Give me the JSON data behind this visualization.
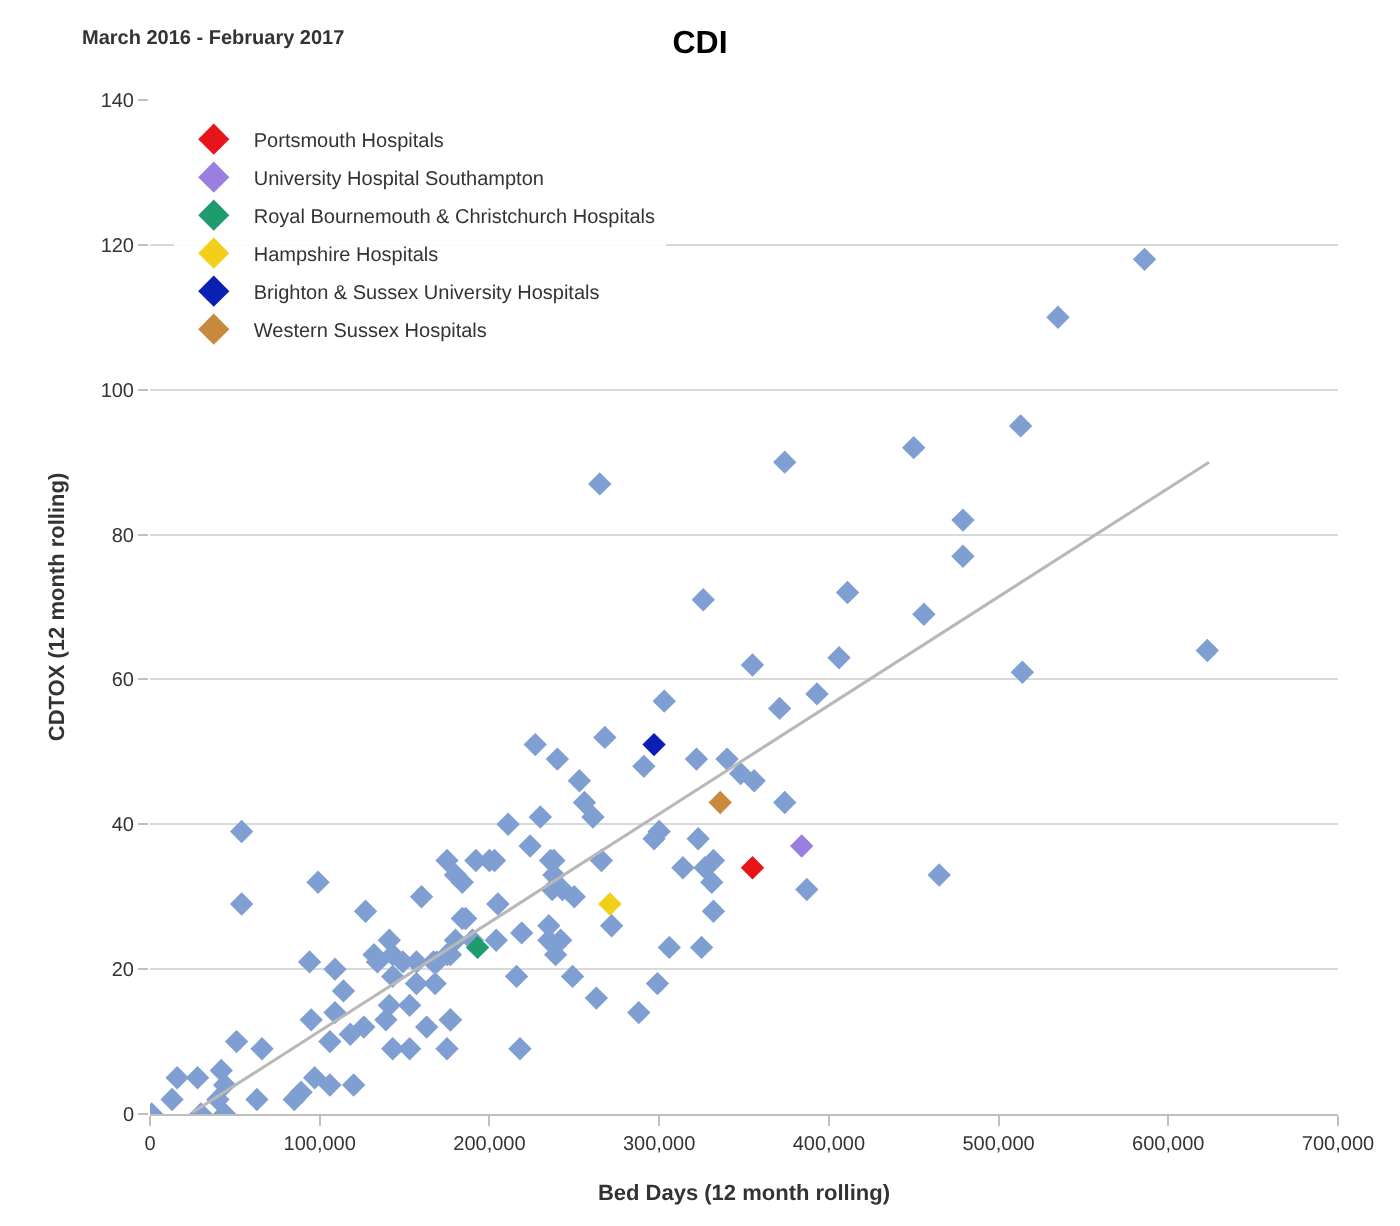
{
  "chart_data": {
    "type": "scatter",
    "title": "CDI",
    "subtitle": "March 2016 - February 2017",
    "xlabel": "Bed Days (12 month rolling)",
    "ylabel": "CDTOX (12 month rolling)",
    "xlim": [
      0,
      700000
    ],
    "ylim": [
      0,
      140
    ],
    "xticks": [
      0,
      {
        "value": 100000,
        "label": "100,000"
      },
      {
        "value": 200000,
        "label": "200,000"
      },
      {
        "value": 300000,
        "label": "300,000"
      },
      {
        "value": 400000,
        "label": "400,000"
      },
      {
        "value": 500000,
        "label": "500,000"
      },
      {
        "value": 600000,
        "label": "600,000"
      },
      {
        "value": 700000,
        "label": "700,000"
      }
    ],
    "yticks": [
      0,
      20,
      40,
      60,
      80,
      100,
      120,
      140
    ],
    "grid": "y",
    "legend": "top left",
    "marker": "diamond",
    "series": [
      {
        "color": "#7f9fd2",
        "x": [
          586000,
          535000,
          513000,
          450000,
          374000,
          265000,
          479000,
          479000,
          411000,
          326000,
          456000,
          623000,
          406000,
          355000,
          514000,
          393000,
          371000,
          303000,
          268000,
          227000,
          240000,
          291000,
          322000,
          340000,
          348000,
          356000,
          253000,
          256000,
          374000,
          261000,
          211000,
          230000,
          300000,
          323000,
          224000,
          200000,
          238000,
          266000,
          297000,
          314000,
          327000,
          332000,
          387000,
          465000,
          238000,
          243000,
          250000,
          205000,
          219000,
          235000,
          272000,
          332000,
          306000,
          325000,
          249000,
          216000,
          299000,
          263000,
          288000,
          235000,
          242000,
          239000,
          160000,
          175000,
          192000,
          203000,
          180000,
          184000,
          236000,
          237000,
          331000,
          184000,
          180000,
          204000,
          141000,
          134000,
          149000,
          167000,
          175000,
          157000,
          168000,
          177000,
          141000,
          153000,
          54000,
          54000,
          99000,
          127000,
          94000,
          109000,
          114000,
          132000,
          143000,
          143000,
          157000,
          169000,
          177000,
          186000,
          190000,
          95000,
          109000,
          106000,
          118000,
          126000,
          139000,
          143000,
          153000,
          163000,
          175000,
          177000,
          218000,
          51000,
          66000,
          97000,
          106000,
          120000,
          16000,
          28000,
          42000,
          44000,
          40000,
          13000,
          30000,
          44000,
          63000,
          85000,
          89000,
          1000
        ],
        "values": [
          118,
          110,
          95,
          92,
          90,
          87,
          82,
          77,
          72,
          71,
          69,
          64,
          63,
          62,
          61,
          58,
          56,
          57,
          52,
          51,
          49,
          48,
          49,
          49,
          47,
          46,
          46,
          43,
          43,
          41,
          40,
          41,
          39,
          38,
          37,
          35,
          35,
          35,
          38,
          34,
          34,
          35,
          31,
          33,
          33,
          31,
          30,
          29,
          25,
          24,
          26,
          28,
          23,
          23,
          19,
          19,
          18,
          16,
          14,
          26,
          24,
          22,
          30,
          35,
          35,
          35,
          33,
          32,
          35,
          31,
          32,
          27,
          24,
          24,
          24,
          21,
          21,
          21,
          22,
          18,
          18,
          13,
          15,
          15,
          39,
          29,
          32,
          28,
          21,
          20,
          17,
          22,
          22,
          19,
          21,
          21,
          22,
          27,
          24,
          13,
          14,
          10,
          11,
          12,
          13,
          9,
          9,
          12,
          9,
          13,
          9,
          10,
          9,
          5,
          4,
          4,
          5,
          5,
          6,
          4,
          2,
          2,
          0,
          0,
          2,
          2,
          3,
          0
        ]
      },
      {
        "name": "Portsmouth Hospitals",
        "color": "#e8141c",
        "x": [
          355000
        ],
        "values": [
          34
        ]
      },
      {
        "name": "University Hospital Southampton",
        "color": "#9b7fe0",
        "x": [
          384000
        ],
        "values": [
          37
        ]
      },
      {
        "name": "Royal Bournemouth & Christchurch Hospitals",
        "color": "#1f9c6e",
        "x": [
          193000
        ],
        "values": [
          23
        ]
      },
      {
        "name": "Hampshire Hospitals",
        "color": "#f2d01a",
        "x": [
          271000
        ],
        "values": [
          29
        ]
      },
      {
        "name": "Brighton & Sussex University Hospitals",
        "color": "#0a1fb4",
        "x": [
          297000
        ],
        "values": [
          51
        ]
      },
      {
        "name": "Western Sussex Hospitals",
        "color": "#c88a3c",
        "x": [
          336000
        ],
        "values": [
          43
        ]
      },
      {
        "type": "line",
        "marker": "none",
        "color": "#b8b8b8",
        "x": [
          25000,
          624000
        ],
        "values": [
          0.2,
          90
        ]
      }
    ]
  }
}
